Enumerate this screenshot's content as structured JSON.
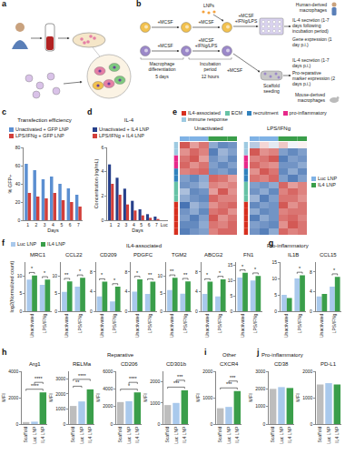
{
  "figure": {
    "diagram_a": {
      "letter": "a"
    },
    "diagram_b": {
      "letter": "b",
      "lnp_label": "LNPs",
      "top_row_steps": [
        "+MCSF",
        "+MCSF"
      ],
      "bottom_row_steps": [
        "+MCSF",
        "+MCSF +IFNg/LPS"
      ],
      "plate_step": "+MCSF +IFNg/LPS",
      "scaffold_step": "+MCSF",
      "phases": [
        {
          "label": "Macrophage differentiation",
          "duration": "5 days"
        },
        {
          "label": "Incubation period",
          "duration": "12 hours"
        }
      ],
      "human": {
        "label": "Human-derived macrophages",
        "readouts": [
          "IL-4 secretion (1-7 days following incubation period)",
          "Gene expression (1 day p.i.)"
        ]
      },
      "mouse": {
        "label": "Mouse-derived macrophages",
        "seeding": "Scaffold seeding",
        "readouts": [
          "IL-4 secretion (1-7 days p.i.)",
          "Pro-reparative marker expression (2 days p.i.)"
        ]
      }
    }
  },
  "chart_data": [
    {
      "letter": "c",
      "type": "bar",
      "title": "Transfection efficiency",
      "xlabel": "Days",
      "ylabel": "% GFP+",
      "categories": [
        "1",
        "2",
        "3",
        "4",
        "5",
        "6",
        "7"
      ],
      "series": [
        {
          "name": "Unactivated + GFP LNP",
          "color": "#5b8fd1",
          "values": [
            62,
            55,
            45,
            48,
            40,
            35,
            28
          ]
        },
        {
          "name": "LPS/IFNg + GFP LNP",
          "color": "#d23f3a",
          "values": [
            30,
            26,
            24,
            30,
            22,
            20,
            15
          ]
        }
      ],
      "ylim": [
        0,
        80
      ],
      "yticks": [
        0,
        20,
        40,
        60,
        80
      ],
      "legend": "top",
      "grid": false
    },
    {
      "letter": "d",
      "type": "bar",
      "title": "IL-4",
      "xlabel": "Days",
      "ylabel": "Concentration (ng/mL)",
      "categories": [
        "1",
        "2",
        "3",
        "4",
        "5",
        "6",
        "7",
        "Luc"
      ],
      "series": [
        {
          "name": "Unactivated + IL4 LNP",
          "color": "#27408b",
          "values": [
            4.6,
            3.5,
            2.6,
            1.6,
            0.9,
            0.5,
            0.3,
            0
          ]
        },
        {
          "name": "LPS/IFNg + IL4 LNP",
          "color": "#d23f3a",
          "values": [
            3.0,
            2.1,
            1.3,
            0.8,
            0.4,
            0.2,
            0.1,
            0
          ]
        }
      ],
      "ylim": [
        0,
        6
      ],
      "yticks": [
        0,
        2,
        4,
        6
      ],
      "legend": "top",
      "grid": false
    },
    {
      "letter": "e",
      "type": "heatmap",
      "tick_labels": false,
      "zlim": [
        -1.5,
        1.5
      ],
      "row_legend": [
        {
          "name": "IL4-associated",
          "color": "#d7301f"
        },
        {
          "name": "ECM",
          "color": "#66c2a5"
        },
        {
          "name": "recruitment",
          "color": "#3182bd"
        },
        {
          "name": "pro-inflammatory",
          "color": "#e7298a"
        },
        {
          "name": "immune response",
          "color": "#9ecae1"
        }
      ],
      "column_legend": [
        {
          "name": "Luc LNP",
          "color": "#7fb2e5"
        },
        {
          "name": "IL4 LNP",
          "color": "#3a9e4a"
        }
      ],
      "row_groups": [
        "IL4-associated",
        "IL4-associated",
        "IL4-associated",
        "IL4-associated",
        "IL4-associated",
        "ECM",
        "ECM",
        "ECM",
        "recruitment",
        "recruitment",
        "pro-inflammatory",
        "pro-inflammatory",
        "immune response",
        "immune response"
      ],
      "column_groups": [
        "Luc LNP",
        "Luc LNP",
        "Luc LNP",
        "IL4 LNP",
        "IL4 LNP",
        "IL4 LNP"
      ],
      "panels": [
        {
          "title": "Unactivated",
          "cells": [
            [
              -1.2,
              -1.0,
              -0.9,
              0.9,
              1.1,
              1.1
            ],
            [
              -1.1,
              -1.1,
              -0.8,
              1.0,
              0.9,
              1.1
            ],
            [
              -0.9,
              -1.2,
              -0.9,
              1.2,
              0.8,
              1.0
            ],
            [
              -1.0,
              -0.8,
              -1.1,
              1.0,
              1.1,
              0.8
            ],
            [
              -1.3,
              -0.7,
              -0.9,
              0.8,
              1.0,
              1.1
            ],
            [
              -0.8,
              -1.0,
              -1.1,
              1.1,
              0.9,
              0.9
            ],
            [
              -0.6,
              -1.1,
              -1.0,
              0.7,
              1.2,
              0.8
            ],
            [
              -1.0,
              -0.9,
              -0.7,
              0.9,
              0.8,
              0.9
            ],
            [
              -0.9,
              -1.1,
              -0.8,
              1.1,
              1.0,
              0.7
            ],
            [
              0.9,
              1.0,
              1.1,
              -1.0,
              -0.9,
              -1.1
            ],
            [
              1.1,
              0.8,
              1.0,
              -0.9,
              -1.1,
              -0.9
            ],
            [
              1.0,
              1.2,
              0.7,
              -1.0,
              -0.8,
              -1.1
            ],
            [
              0.8,
              1.1,
              0.9,
              -1.2,
              -0.7,
              -0.9
            ],
            [
              1.2,
              0.7,
              1.0,
              -0.8,
              -1.1,
              -1.0
            ]
          ]
        },
        {
          "title": "LPS/IFNg",
          "cells": [
            [
              -1.0,
              -1.2,
              -0.8,
              1.1,
              0.9,
              1.0
            ],
            [
              -0.9,
              -1.0,
              -1.1,
              0.8,
              1.2,
              1.0
            ],
            [
              -1.2,
              -0.8,
              -1.0,
              1.0,
              1.1,
              0.9
            ],
            [
              -0.8,
              -1.1,
              -1.0,
              0.9,
              1.0,
              1.0
            ],
            [
              -1.1,
              -0.9,
              -1.0,
              1.2,
              0.8,
              1.0
            ],
            [
              -0.7,
              -1.2,
              -0.9,
              1.0,
              1.0,
              0.8
            ],
            [
              -1.0,
              -0.8,
              -1.1,
              0.9,
              1.1,
              0.9
            ],
            [
              -0.9,
              -1.0,
              -0.8,
              1.1,
              0.7,
              0.9
            ],
            [
              1.0,
              0.9,
              1.1,
              -0.9,
              -1.2,
              -0.9
            ],
            [
              0.8,
              1.2,
              1.0,
              -1.1,
              -0.8,
              -1.1
            ],
            [
              1.1,
              0.9,
              0.8,
              -1.0,
              -1.0,
              -0.8
            ],
            [
              0.9,
              1.0,
              1.2,
              -1.2,
              -0.9,
              -1.0
            ],
            [
              1.2,
              0.8,
              0.9,
              -0.9,
              -1.1,
              -0.9
            ],
            [
              -0.5,
              0.3,
              -0.2,
              0.4,
              -0.1,
              0.1
            ]
          ]
        }
      ]
    },
    {
      "letter": "f",
      "type": "bar",
      "group_title": "IL4-associated",
      "categories": [
        "Unactivated",
        "LPS/IFNg"
      ],
      "series": [
        {
          "name": "Luc LNP",
          "color": "#a9c9ec"
        },
        {
          "name": "IL4 LNP",
          "color": "#3a9e4a"
        }
      ],
      "legend": "top left",
      "panels": [
        {
          "title": "MRC1",
          "ylabel": "log2(Normalized count)",
          "values": [
            [
              9.0,
              7.5
            ],
            [
              10.2,
              9.0
            ]
          ],
          "ylim": [
            0,
            14
          ],
          "yticks": [
            0,
            5,
            10
          ],
          "significance": [
            "*",
            "*"
          ]
        },
        {
          "title": "CCL22",
          "values": [
            [
              5.5,
              7.0
            ],
            [
              8.5,
              9.5
            ]
          ],
          "ylim": [
            0,
            14
          ],
          "yticks": [
            0,
            5,
            10
          ],
          "significance": [
            "**",
            "*"
          ]
        },
        {
          "title": "CD209",
          "values": [
            [
              3.0,
              2.0
            ],
            [
              6.0,
              5.0
            ]
          ],
          "ylim": [
            0,
            10
          ],
          "yticks": [
            0,
            4,
            8
          ],
          "significance": [
            "*",
            "*"
          ]
        },
        {
          "title": "PDGFC",
          "values": [
            [
              4.0,
              3.5
            ],
            [
              6.5,
              6.0
            ]
          ],
          "ylim": [
            0,
            10
          ],
          "yticks": [
            0,
            4,
            8
          ],
          "significance": [
            "*",
            "**"
          ]
        },
        {
          "title": "TGM2",
          "values": [
            [
              6.0,
              5.0
            ],
            [
              9.5,
              8.5
            ]
          ],
          "ylim": [
            0,
            14
          ],
          "yticks": [
            0,
            5,
            10
          ],
          "significance": [
            "**",
            "**"
          ]
        },
        {
          "title": "ABCG2",
          "values": [
            [
              3.5,
              3.0
            ],
            [
              6.0,
              6.5
            ]
          ],
          "ylim": [
            0,
            10
          ],
          "yticks": [
            0,
            4,
            8
          ],
          "significance": [
            "*",
            "*"
          ]
        },
        {
          "title": "FN1",
          "values": [
            [
              11.0,
              10.0
            ],
            [
              12.5,
              11.5
            ]
          ],
          "ylim": [
            0,
            16
          ],
          "yticks": [
            0,
            5,
            10,
            15
          ],
          "significance": [
            "*",
            "*"
          ]
        }
      ]
    },
    {
      "letter": "g",
      "type": "bar",
      "group_title": "Pro-inflammatory",
      "categories": [
        "Unactivated",
        "LPS/IFNg"
      ],
      "series": [
        {
          "color": "#a9c9ec"
        },
        {
          "color": "#3a9e4a"
        }
      ],
      "panels": [
        {
          "title": "IL1B",
          "values": [
            [
              5.0,
              10.0
            ],
            [
              4.0,
              11.0
            ]
          ],
          "ylim": [
            0,
            15
          ],
          "yticks": [
            0,
            5,
            10,
            15
          ],
          "significance": [
            null,
            "*"
          ]
        },
        {
          "title": "CCL15",
          "values": [
            [
              3.0,
              5.0
            ],
            [
              3.5,
              7.0
            ]
          ],
          "ylim": [
            0,
            10
          ],
          "yticks": [
            0,
            4,
            8
          ],
          "significance": [
            null,
            "*"
          ]
        }
      ]
    },
    {
      "letter": "h",
      "type": "bar",
      "group_title": "Reparative",
      "categories": [
        "Scaffold",
        "Luc LNP",
        "IL4 LNP"
      ],
      "colors": [
        "#bdbdbd",
        "#a9c9ec",
        "#3a9e4a"
      ],
      "panels": [
        {
          "title": "Arg1",
          "ylabel": "MFI",
          "values": [
            150,
            180,
            2400
          ],
          "ylim": [
            0,
            4000
          ],
          "yticks": [
            0,
            2000,
            4000
          ],
          "significance": [
            {
              "pair": [
                0,
                2
              ],
              "text": "****"
            },
            {
              "pair": [
                1,
                2
              ],
              "text": "****"
            }
          ]
        },
        {
          "title": "RELMa",
          "ylabel": "MFI",
          "values": [
            1200,
            1500,
            2300
          ],
          "ylim": [
            0,
            3500
          ],
          "yticks": [
            0,
            1000,
            2000,
            3000
          ],
          "significance": [
            {
              "pair": [
                0,
                1
              ],
              "text": "**"
            },
            {
              "pair": [
                0,
                2
              ],
              "text": "****"
            }
          ]
        },
        {
          "title": "CD206",
          "ylabel": "MFI",
          "values": [
            2500,
            2600,
            3600
          ],
          "ylim": [
            0,
            6000
          ],
          "yticks": [
            0,
            2000,
            4000,
            6000
          ],
          "significance": [
            {
              "pair": [
                0,
                2
              ],
              "text": "*"
            },
            {
              "pair": [
                1,
                2
              ],
              "text": "****"
            }
          ]
        },
        {
          "title": "CD301b",
          "ylabel": "MFI",
          "values": [
            900,
            1000,
            1600
          ],
          "ylim": [
            0,
            2500
          ],
          "yticks": [
            0,
            1000,
            2000
          ],
          "significance": [
            {
              "pair": [
                0,
                2
              ],
              "text": "***"
            },
            {
              "pair": [
                1,
                2
              ],
              "text": "***"
            }
          ]
        }
      ]
    },
    {
      "letter": "i",
      "type": "bar",
      "group_title": "Other",
      "categories": [
        "Scaffold",
        "Luc LNP",
        "IL4 LNP"
      ],
      "colors": [
        "#bdbdbd",
        "#a9c9ec",
        "#3a9e4a"
      ],
      "panels": [
        {
          "title": "CXCR4",
          "ylabel": "MFI",
          "values": [
            600,
            650,
            1250
          ],
          "ylim": [
            0,
            2000
          ],
          "yticks": [
            0,
            1000,
            2000
          ],
          "significance": [
            {
              "pair": [
                0,
                2
              ],
              "text": "***"
            },
            {
              "pair": [
                1,
                2
              ],
              "text": "***"
            }
          ]
        }
      ]
    },
    {
      "letter": "j",
      "type": "bar",
      "group_title": "Pro-inflammatory",
      "categories": [
        "Scaffold",
        "Luc LNP",
        "IL4 LNP"
      ],
      "colors": [
        "#bdbdbd",
        "#a9c9ec",
        "#3a9e4a"
      ],
      "panels": [
        {
          "title": "CD38",
          "ylabel": "MFI",
          "values": [
            2000,
            2100,
            2050
          ],
          "ylim": [
            0,
            3000
          ],
          "yticks": [
            0,
            1000,
            2000,
            3000
          ]
        },
        {
          "title": "PD-L1",
          "ylabel": "MFI",
          "values": [
            1500,
            1550,
            1500
          ],
          "ylim": [
            0,
            2000
          ],
          "yticks": [
            0,
            1000,
            2000
          ]
        }
      ]
    }
  ]
}
